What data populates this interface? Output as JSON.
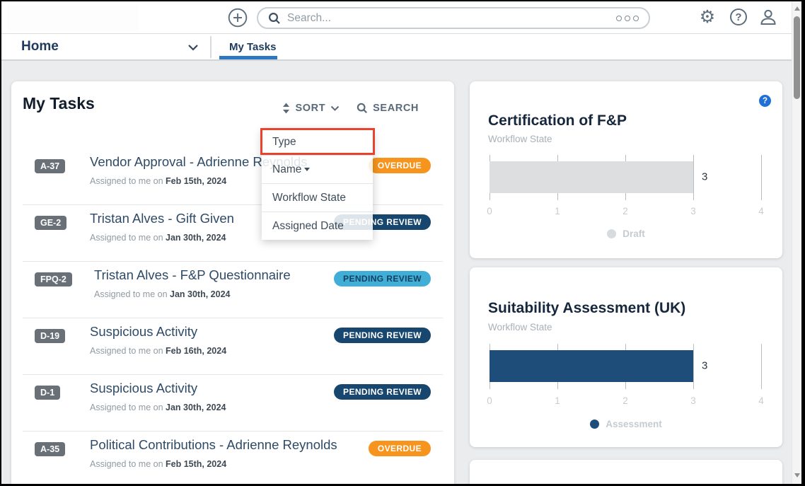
{
  "topbar": {
    "search_placeholder": "Search...",
    "icons": {
      "plus": "+",
      "gear": "⚙",
      "help": "?",
      "search": "magnifier",
      "more_options": "ooo",
      "user": "person-silhouette"
    }
  },
  "nav": {
    "home_label": "Home",
    "tab_label": "My Tasks"
  },
  "tasks_panel": {
    "title": "My Tasks",
    "sort_label": "SORT",
    "search_label": "SEARCH",
    "assigned_prefix": "Assigned to me on ",
    "sort_menu": [
      {
        "label": "Type",
        "highlighted": true
      },
      {
        "label": "Name",
        "sort_direction": "desc"
      },
      {
        "label": "Workflow State"
      },
      {
        "label": "Assigned Date"
      }
    ],
    "tasks": [
      {
        "id": "A-37",
        "title": "Vendor Approval - Adrienne Reynolds",
        "assigned_date": "Feb 15th, 2024",
        "badge": "OVERDUE",
        "badge_style": "overdue"
      },
      {
        "id": "GE-2",
        "title": "Tristan Alves - Gift Given",
        "assigned_date": "Jan 30th, 2024",
        "badge": "PENDING REVIEW",
        "badge_style": "pending-dark"
      },
      {
        "id": "FPQ-2",
        "title": "Tristan Alves - F&P Questionnaire",
        "assigned_date": "Jan 30th, 2024",
        "badge": "PENDING REVIEW",
        "badge_style": "pending-light"
      },
      {
        "id": "D-19",
        "title": "Suspicious Activity",
        "assigned_date": "Feb 16th, 2024",
        "badge": "PENDING REVIEW",
        "badge_style": "pending-dark"
      },
      {
        "id": "D-1",
        "title": "Suspicious Activity",
        "assigned_date": "Jan 30th, 2024",
        "badge": "PENDING REVIEW",
        "badge_style": "pending-dark"
      },
      {
        "id": "A-35",
        "title": "Political Contributions - Adrienne Reynolds",
        "assigned_date": "Feb 15th, 2024",
        "badge": "OVERDUE",
        "badge_style": "overdue"
      }
    ]
  },
  "chart_data": [
    {
      "type": "bar",
      "orientation": "horizontal",
      "title": "Certification of F&P",
      "subtitle": "Workflow State",
      "categories": [
        "Draft"
      ],
      "values": [
        3
      ],
      "value_label": "3",
      "xlim": [
        0,
        4
      ],
      "x_ticks": [
        0,
        1,
        2,
        3,
        4
      ],
      "grid": true,
      "bar_color": "#dcdee0",
      "legend": [
        {
          "label": "Draft",
          "color": "#d8dbde"
        }
      ],
      "legend_position": "bottom",
      "help_icon": "?"
    },
    {
      "type": "bar",
      "orientation": "horizontal",
      "title": "Suitability Assessment (UK)",
      "subtitle": "Workflow State",
      "categories": [
        "Assessment"
      ],
      "values": [
        3
      ],
      "value_label": "3",
      "xlim": [
        0,
        4
      ],
      "x_ticks": [
        0,
        1,
        2,
        3,
        4
      ],
      "grid": true,
      "bar_color": "#1d4d78",
      "legend": [
        {
          "label": "Assessment",
          "color": "#1d4d78"
        }
      ],
      "legend_position": "bottom"
    }
  ],
  "colors": {
    "tab_accent_blue": "#2e78c2",
    "overdue_orange": "#f7941e",
    "pending_navy": "#17476e",
    "pending_cyan": "#41aed8",
    "annotation_red": "#e8432d",
    "id_badge_gray": "#6a7077",
    "help_icon_blue": "#2170d8",
    "page_background": "#ebeced"
  }
}
